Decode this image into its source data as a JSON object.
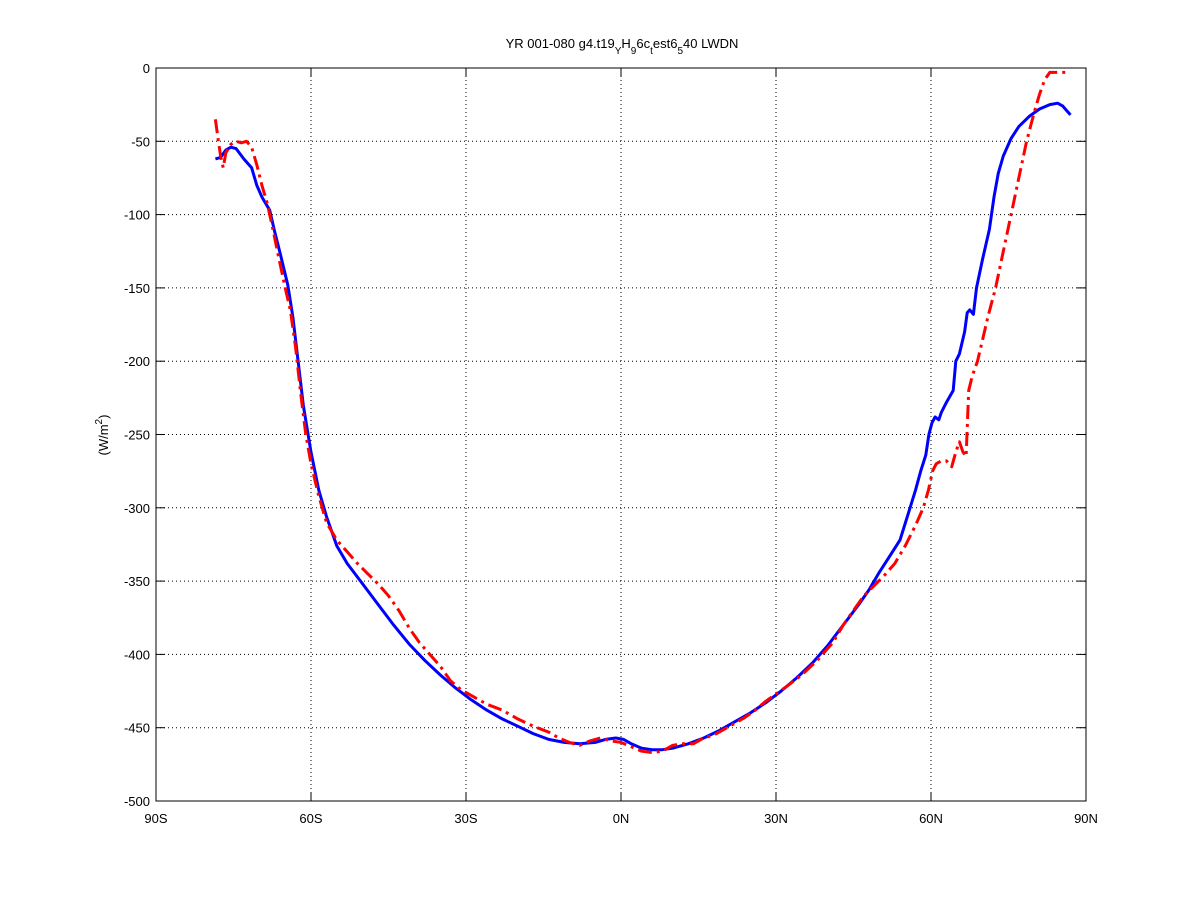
{
  "chart_data": {
    "type": "line",
    "title_parts": {
      "pre": "YR 001-080 g4.t19",
      "sub1": "Y",
      "mid1": "H",
      "sub2": "9",
      "mid2": "6c",
      "sub3": "t",
      "mid3": "est6",
      "sub4": "5",
      "post": "40 LWDN"
    },
    "ylabel": {
      "pre": "(W/m",
      "sup": "2",
      "post": ")"
    },
    "xlim": [
      -90,
      90
    ],
    "ylim": [
      -500,
      0
    ],
    "xticks": [
      -90,
      -60,
      -30,
      0,
      30,
      60,
      90
    ],
    "xtick_labels": [
      "90S",
      "60S",
      "30S",
      "0N",
      "30N",
      "60N",
      "90N"
    ],
    "yticks": [
      0,
      -50,
      -100,
      -150,
      -200,
      -250,
      -300,
      -350,
      -400,
      -450,
      -500
    ],
    "ytick_labels": [
      "0",
      "-50",
      "-100",
      "-150",
      "-200",
      "-250",
      "-300",
      "-350",
      "-400",
      "-450",
      "-500"
    ],
    "grid": true,
    "series": [
      {
        "color": "#0000ff",
        "style": "solid",
        "points": [
          [
            -78.5,
            -62
          ],
          [
            -77.5,
            -61
          ],
          [
            -76.5,
            -56
          ],
          [
            -75.5,
            -54
          ],
          [
            -74.5,
            -55
          ],
          [
            -73,
            -62
          ],
          [
            -71.5,
            -68
          ],
          [
            -70.5,
            -80
          ],
          [
            -69.5,
            -88
          ],
          [
            -68,
            -97
          ],
          [
            -67,
            -112
          ],
          [
            -66,
            -126
          ],
          [
            -64.5,
            -148
          ],
          [
            -63.5,
            -170
          ],
          [
            -62.5,
            -200
          ],
          [
            -61.5,
            -230
          ],
          [
            -60,
            -262
          ],
          [
            -58.5,
            -288
          ],
          [
            -57,
            -306
          ],
          [
            -55,
            -326
          ],
          [
            -53,
            -338
          ],
          [
            -50,
            -352
          ],
          [
            -47,
            -366
          ],
          [
            -44,
            -380
          ],
          [
            -41,
            -393
          ],
          [
            -38,
            -404
          ],
          [
            -35,
            -414
          ],
          [
            -32,
            -423
          ],
          [
            -29,
            -431
          ],
          [
            -26,
            -438
          ],
          [
            -23,
            -444
          ],
          [
            -20,
            -449
          ],
          [
            -17,
            -454
          ],
          [
            -14,
            -458
          ],
          [
            -11,
            -460
          ],
          [
            -8,
            -461
          ],
          [
            -5,
            -460
          ],
          [
            -3,
            -458
          ],
          [
            -1,
            -457
          ],
          [
            0.5,
            -458
          ],
          [
            2,
            -461
          ],
          [
            4,
            -464
          ],
          [
            6,
            -465
          ],
          [
            8,
            -465
          ],
          [
            10,
            -464
          ],
          [
            13,
            -461
          ],
          [
            16,
            -457
          ],
          [
            19,
            -452
          ],
          [
            22,
            -446
          ],
          [
            25,
            -440
          ],
          [
            28,
            -433
          ],
          [
            31,
            -425
          ],
          [
            34,
            -416
          ],
          [
            37,
            -406
          ],
          [
            40,
            -394
          ],
          [
            43,
            -380
          ],
          [
            46,
            -366
          ],
          [
            48,
            -356
          ],
          [
            50,
            -344
          ],
          [
            52,
            -333
          ],
          [
            54,
            -322
          ],
          [
            55.5,
            -305
          ],
          [
            57,
            -288
          ],
          [
            58,
            -275
          ],
          [
            59,
            -264
          ],
          [
            59.6,
            -250
          ],
          [
            60.2,
            -242
          ],
          [
            60.8,
            -238
          ],
          [
            61.5,
            -240
          ],
          [
            62,
            -235
          ],
          [
            63,
            -228
          ],
          [
            64.3,
            -220
          ],
          [
            64.8,
            -200
          ],
          [
            65.5,
            -195
          ],
          [
            66.5,
            -180
          ],
          [
            67,
            -167
          ],
          [
            67.5,
            -165
          ],
          [
            68.2,
            -168
          ],
          [
            68.8,
            -150
          ],
          [
            70,
            -130
          ],
          [
            71.3,
            -110
          ],
          [
            72.2,
            -88
          ],
          [
            73,
            -72
          ],
          [
            74,
            -60
          ],
          [
            75.5,
            -48
          ],
          [
            77,
            -40
          ],
          [
            79,
            -33
          ],
          [
            81,
            -28
          ],
          [
            83,
            -25
          ],
          [
            84.5,
            -24
          ],
          [
            85.5,
            -26
          ],
          [
            86.5,
            -30
          ],
          [
            87,
            -32
          ]
        ]
      },
      {
        "color": "#ff0000",
        "style": "dashdot",
        "points": [
          [
            -78.5,
            -35
          ],
          [
            -78,
            -48
          ],
          [
            -77.5,
            -60
          ],
          [
            -77,
            -68
          ],
          [
            -76.5,
            -58
          ],
          [
            -75.5,
            -52
          ],
          [
            -74.5,
            -50
          ],
          [
            -73.5,
            -51
          ],
          [
            -72.5,
            -50
          ],
          [
            -71.5,
            -54
          ],
          [
            -70.5,
            -66
          ],
          [
            -69.5,
            -80
          ],
          [
            -68.5,
            -92
          ],
          [
            -67.5,
            -108
          ],
          [
            -66.5,
            -125
          ],
          [
            -65,
            -150
          ],
          [
            -64,
            -165
          ],
          [
            -63,
            -190
          ],
          [
            -62,
            -222
          ],
          [
            -61,
            -250
          ],
          [
            -60,
            -270
          ],
          [
            -58.5,
            -292
          ],
          [
            -57,
            -310
          ],
          [
            -55,
            -322
          ],
          [
            -53,
            -330
          ],
          [
            -51,
            -338
          ],
          [
            -49,
            -345
          ],
          [
            -47,
            -352
          ],
          [
            -45,
            -360
          ],
          [
            -43,
            -370
          ],
          [
            -41,
            -382
          ],
          [
            -39,
            -392
          ],
          [
            -37,
            -400
          ],
          [
            -35,
            -408
          ],
          [
            -33,
            -418
          ],
          [
            -31,
            -424
          ],
          [
            -29,
            -428
          ],
          [
            -26,
            -434
          ],
          [
            -23,
            -438
          ],
          [
            -20,
            -444
          ],
          [
            -17,
            -449
          ],
          [
            -14,
            -453
          ],
          [
            -12,
            -457
          ],
          [
            -10,
            -460
          ],
          [
            -8,
            -462
          ],
          [
            -6,
            -459
          ],
          [
            -4,
            -457
          ],
          [
            -2,
            -459
          ],
          [
            0,
            -460
          ],
          [
            2,
            -463
          ],
          [
            4,
            -466
          ],
          [
            6,
            -467
          ],
          [
            8,
            -466
          ],
          [
            10,
            -462
          ],
          [
            12,
            -461
          ],
          [
            14,
            -461
          ],
          [
            16,
            -457
          ],
          [
            18,
            -455
          ],
          [
            20,
            -451
          ],
          [
            22,
            -447
          ],
          [
            24,
            -443
          ],
          [
            26,
            -438
          ],
          [
            28,
            -432
          ],
          [
            30,
            -427
          ],
          [
            32,
            -422
          ],
          [
            35,
            -414
          ],
          [
            38,
            -404
          ],
          [
            41,
            -392
          ],
          [
            43,
            -380
          ],
          [
            45,
            -370
          ],
          [
            47,
            -360
          ],
          [
            49,
            -353
          ],
          [
            51,
            -346
          ],
          [
            53,
            -338
          ],
          [
            55,
            -326
          ],
          [
            57,
            -312
          ],
          [
            58.5,
            -300
          ],
          [
            59.5,
            -288
          ],
          [
            60.3,
            -275
          ],
          [
            61,
            -270
          ],
          [
            62,
            -268
          ],
          [
            63,
            -268
          ],
          [
            64,
            -272
          ],
          [
            64.8,
            -262
          ],
          [
            65.5,
            -255
          ],
          [
            66.2,
            -262
          ],
          [
            66.8,
            -265
          ],
          [
            67.3,
            -220
          ],
          [
            68,
            -210
          ],
          [
            69,
            -200
          ],
          [
            70,
            -185
          ],
          [
            71,
            -170
          ],
          [
            72.5,
            -150
          ],
          [
            74,
            -125
          ],
          [
            75.5,
            -100
          ],
          [
            77,
            -75
          ],
          [
            78.5,
            -50
          ],
          [
            80,
            -30
          ],
          [
            81,
            -18
          ],
          [
            82,
            -8
          ],
          [
            83,
            -3
          ],
          [
            84,
            -3
          ],
          [
            86,
            -3
          ]
        ]
      }
    ]
  }
}
